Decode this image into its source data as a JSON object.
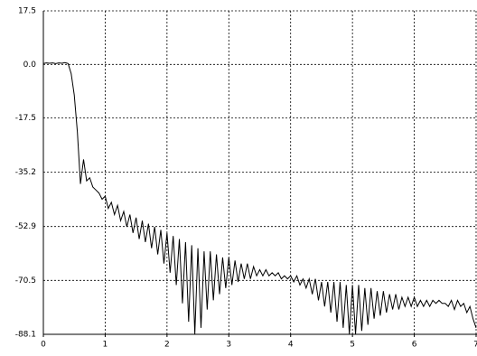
{
  "chart_data": {
    "type": "line",
    "color": "#000000",
    "grid": true,
    "xlim": [
      0,
      7
    ],
    "xticks": [
      0,
      1,
      2,
      3,
      4,
      5,
      6,
      7
    ],
    "ylim": [
      -88.1,
      17.5
    ],
    "yticks": [
      -88.1,
      -70.5,
      -52.9,
      -35.2,
      -17.5,
      {
        "value": 0,
        "label": "0.0"
      },
      17.5
    ],
    "x": [
      0,
      0.05,
      0.1,
      0.15,
      0.2,
      0.25,
      0.3,
      0.35,
      0.4,
      0.45,
      0.5,
      0.55,
      0.6,
      0.65,
      0.7,
      0.75,
      0.8,
      0.85,
      0.9,
      0.95,
      1,
      1.05,
      1.1,
      1.15,
      1.2,
      1.25,
      1.3,
      1.35,
      1.4,
      1.45,
      1.5,
      1.55,
      1.6,
      1.65,
      1.7,
      1.75,
      1.8,
      1.85,
      1.9,
      1.95,
      2,
      2.05,
      2.1,
      2.15,
      2.2,
      2.25,
      2.3,
      2.35,
      2.4,
      2.45,
      2.5,
      2.55,
      2.6,
      2.65,
      2.7,
      2.75,
      2.8,
      2.85,
      2.9,
      2.95,
      3,
      3.05,
      3.1,
      3.15,
      3.2,
      3.25,
      3.3,
      3.35,
      3.4,
      3.45,
      3.5,
      3.55,
      3.6,
      3.65,
      3.7,
      3.75,
      3.8,
      3.85,
      3.9,
      3.95,
      4,
      4.05,
      4.1,
      4.15,
      4.2,
      4.25,
      4.3,
      4.35,
      4.4,
      4.45,
      4.5,
      4.55,
      4.6,
      4.65,
      4.7,
      4.75,
      4.8,
      4.85,
      4.9,
      4.95,
      5,
      5.05,
      5.1,
      5.15,
      5.2,
      5.25,
      5.3,
      5.35,
      5.4,
      5.45,
      5.5,
      5.55,
      5.6,
      5.65,
      5.7,
      5.75,
      5.8,
      5.85,
      5.9,
      5.95,
      6,
      6.05,
      6.1,
      6.15,
      6.2,
      6.25,
      6.3,
      6.35,
      6.4,
      6.45,
      6.5,
      6.55,
      6.6,
      6.65,
      6.7,
      6.75,
      6.8,
      6.85,
      6.9,
      6.95,
      7
    ],
    "values": [
      0.3,
      0.5,
      0.4,
      0.5,
      0.3,
      0.5,
      0.4,
      0.6,
      0.3,
      -3,
      -10,
      -22,
      -39,
      -31,
      -38,
      -37,
      -40,
      -41,
      -42,
      -44,
      -43,
      -47,
      -45,
      -49,
      -46,
      -51,
      -48,
      -53,
      -49,
      -55,
      -50,
      -57,
      -51,
      -58,
      -52,
      -60,
      -53,
      -62,
      -54,
      -65,
      -55,
      -68,
      -56,
      -72,
      -57,
      -78,
      -58,
      -84,
      -59,
      -88,
      -60,
      -86,
      -61,
      -80,
      -61,
      -77,
      -62,
      -75,
      -63,
      -73,
      -63,
      -72,
      -64,
      -71,
      -65,
      -70,
      -65,
      -70,
      -66,
      -69,
      -67,
      -69,
      -67,
      -69,
      -68,
      -69,
      -68,
      -70,
      -69,
      -70,
      -69,
      -71,
      -69,
      -72,
      -70,
      -73,
      -70,
      -75,
      -70,
      -77,
      -71,
      -79,
      -71,
      -81,
      -71,
      -84,
      -71,
      -86,
      -72,
      -88,
      -72,
      -88,
      -72,
      -87,
      -73,
      -85,
      -73,
      -83,
      -74,
      -82,
      -74,
      -81,
      -75,
      -80,
      -75,
      -80,
      -76,
      -79,
      -76,
      -79,
      -76,
      -79,
      -77,
      -79,
      -77,
      -79,
      -77,
      -78,
      -77,
      -78,
      -78,
      -79,
      -77,
      -80,
      -77,
      -79,
      -78,
      -81,
      -79,
      -83,
      -86
    ]
  }
}
